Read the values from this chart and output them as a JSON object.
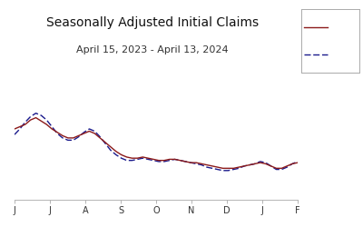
{
  "title": "Seasonally Adjusted Initial Claims",
  "subtitle": "April 15, 2023 - April 13, 2024",
  "title_fontsize": 10,
  "subtitle_fontsize": 8,
  "x_tick_labels": [
    "J",
    "J",
    "A",
    "S",
    "O",
    "N",
    "D",
    "J",
    "F"
  ],
  "background_color": "#ffffff",
  "grid_color": "#d0d0d0",
  "solid_color": "#8B1A1A",
  "dashed_color": "#1a1a8c",
  "solid_values": [
    248,
    250,
    252,
    256,
    258,
    255,
    252,
    248,
    245,
    242,
    240,
    240,
    242,
    244,
    246,
    244,
    240,
    236,
    232,
    228,
    225,
    223,
    222,
    222,
    223,
    222,
    221,
    220,
    220,
    221,
    221,
    220,
    219,
    218,
    218,
    217,
    216,
    215,
    214,
    213,
    213,
    213,
    214,
    215,
    216,
    217,
    218,
    217,
    215,
    213,
    213,
    215,
    217,
    218
  ],
  "dashed_values": [
    243,
    248,
    254,
    259,
    262,
    260,
    256,
    250,
    244,
    240,
    238,
    238,
    241,
    245,
    248,
    246,
    241,
    235,
    229,
    225,
    222,
    220,
    220,
    221,
    222,
    221,
    220,
    219,
    219,
    220,
    221,
    220,
    219,
    218,
    217,
    216,
    214,
    213,
    212,
    211,
    211,
    212,
    213,
    215,
    216,
    217,
    219,
    218,
    215,
    212,
    212,
    214,
    217,
    219
  ],
  "ylim": [
    185,
    290
  ],
  "figsize": [
    4.0,
    2.5
  ],
  "dpi": 100,
  "legend_label_solid": "—",
  "legend_label_dashed": "- -"
}
